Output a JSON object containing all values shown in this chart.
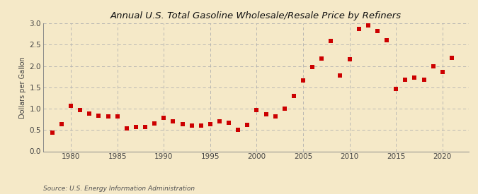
{
  "title": "Annual U.S. Total Gasoline Wholesale/Resale Price by Refiners",
  "ylabel": "Dollars per Gallon",
  "source": "Source: U.S. Energy Information Administration",
  "background_color": "#f5e9c8",
  "plot_background_color": "#f5e9c8",
  "marker_color": "#cc0000",
  "grid_color": "#b0b0b0",
  "xlim": [
    1977.0,
    2022.8
  ],
  "ylim": [
    0.0,
    3.0
  ],
  "yticks": [
    0.0,
    0.5,
    1.0,
    1.5,
    2.0,
    2.5,
    3.0
  ],
  "xticks": [
    1980,
    1985,
    1990,
    1995,
    2000,
    2005,
    2010,
    2015,
    2020
  ],
  "years": [
    1978,
    1979,
    1980,
    1981,
    1982,
    1983,
    1984,
    1985,
    1986,
    1987,
    1988,
    1989,
    1990,
    1991,
    1992,
    1993,
    1994,
    1995,
    1996,
    1997,
    1998,
    1999,
    2000,
    2001,
    2002,
    2003,
    2004,
    2005,
    2006,
    2007,
    2008,
    2009,
    2010,
    2011,
    2012,
    2013,
    2014,
    2015,
    2016,
    2017,
    2018,
    2019,
    2020,
    2021
  ],
  "values": [
    0.44,
    0.63,
    1.06,
    0.97,
    0.89,
    0.83,
    0.82,
    0.82,
    0.53,
    0.57,
    0.57,
    0.65,
    0.78,
    0.7,
    0.63,
    0.61,
    0.6,
    0.63,
    0.7,
    0.67,
    0.5,
    0.62,
    0.96,
    0.87,
    0.82,
    1.0,
    1.29,
    1.66,
    1.98,
    2.17,
    2.59,
    1.77,
    2.15,
    2.87,
    2.95,
    2.82,
    2.61,
    1.46,
    1.68,
    1.72,
    1.67,
    1.99,
    1.86,
    2.19
  ],
  "title_fontsize": 9.5,
  "tick_fontsize": 7.5,
  "ylabel_fontsize": 7.0,
  "source_fontsize": 6.5,
  "marker_size": 14
}
